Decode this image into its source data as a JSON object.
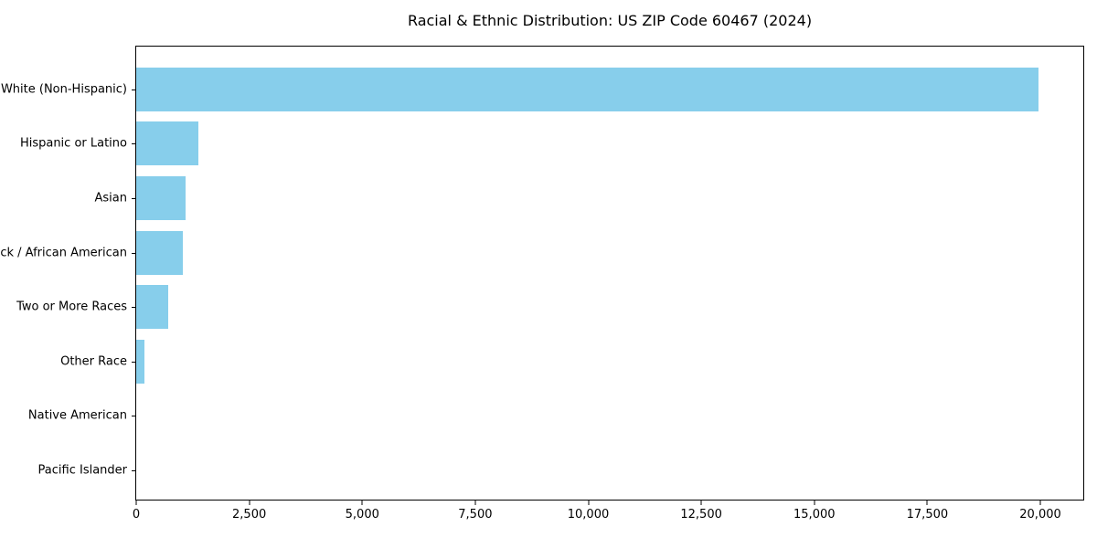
{
  "chart_data": {
    "type": "bar",
    "orientation": "horizontal",
    "title": "Racial & Ethnic Distribution: US ZIP Code 60467 (2024)",
    "categories": [
      "White (Non-Hispanic)",
      "Hispanic or Latino",
      "Asian",
      "Black / African American",
      "Two or More Races",
      "Other Race",
      "Native American",
      "Pacific Islander"
    ],
    "values": [
      19950,
      1375,
      1090,
      1030,
      700,
      185,
      0,
      0
    ],
    "xlabel": "",
    "ylabel": "",
    "xlim": [
      0,
      20950
    ],
    "x_ticks": [
      0,
      2500,
      5000,
      7500,
      10000,
      12500,
      15000,
      17500,
      20000
    ],
    "x_tick_labels": [
      "0",
      "2,500",
      "5,000",
      "7,500",
      "10,000",
      "12,500",
      "15,000",
      "17,500",
      "20,000"
    ],
    "bar_color": "#87CEEB",
    "text_color": "#000000",
    "grid": false,
    "legend": "none"
  }
}
